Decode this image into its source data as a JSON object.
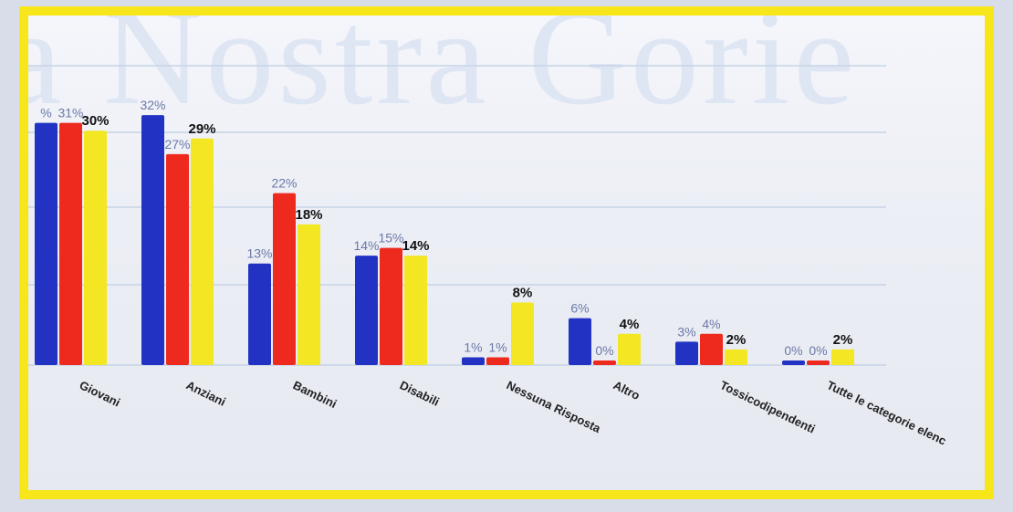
{
  "background_text": "a Nostra Gorie",
  "colors": {
    "frame": "#f7e61a",
    "series": [
      "#2233c4",
      "#ee2a1e",
      "#f3e622"
    ]
  },
  "chart_data": {
    "type": "bar",
    "title": "",
    "xlabel": "",
    "ylabel": "",
    "ylim": [
      0,
      35
    ],
    "grid": true,
    "legend": "none",
    "categories": [
      "Giovani",
      "Anziani",
      "Bambini",
      "Disabili",
      "Nessuna Risposta",
      "Altro",
      "Tossicodipendenti",
      "Tutte le categorie elenc"
    ],
    "series": [
      {
        "values": [
          31,
          32,
          13,
          14,
          1,
          6,
          3,
          0
        ],
        "labels": [
          "%",
          "32%",
          "13%",
          "14%",
          "1%",
          "6%",
          "3%",
          "0%"
        ]
      },
      {
        "values": [
          31,
          27,
          22,
          15,
          1,
          0,
          4,
          0
        ],
        "labels": [
          "31%",
          "27%",
          "22%",
          "15%",
          "1%",
          "0%",
          "4%",
          "0%"
        ]
      },
      {
        "values": [
          30,
          29,
          18,
          14,
          8,
          4,
          2,
          2
        ],
        "labels": [
          "30%",
          "29%",
          "18%",
          "14%",
          "8%",
          "4%",
          "2%",
          "2%"
        ]
      }
    ]
  }
}
